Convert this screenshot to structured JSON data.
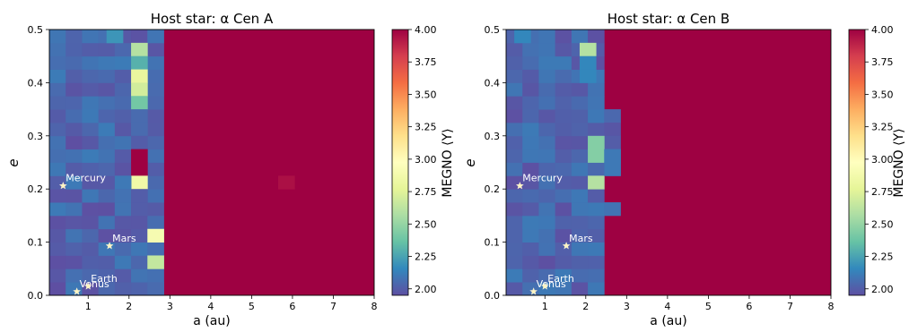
{
  "figure": {
    "colormap": [
      "#5e4fa2",
      "#3288bd",
      "#66c2a5",
      "#abdda4",
      "#e6f598",
      "#ffffbf",
      "#fee08b",
      "#fdae61",
      "#f46d43",
      "#d53e4f",
      "#9e0142"
    ]
  },
  "chart_data": [
    {
      "type": "heatmap",
      "title": "Host star: α Cen A",
      "xlabel": "a (au)",
      "ylabel": "e",
      "colorbar_label": "MEGNO ⟨Y⟩",
      "xlim": [
        0.05,
        8
      ],
      "ylim": [
        0,
        0.5
      ],
      "clim": [
        1.95,
        4.0
      ],
      "xticks": [
        "1",
        "2",
        "3",
        "4",
        "5",
        "6",
        "7",
        "8"
      ],
      "yticks": [
        "0.0",
        "0.1",
        "0.2",
        "0.3",
        "0.4",
        "0.5"
      ],
      "cticks": [
        "2.00",
        "2.25",
        "2.50",
        "2.75",
        "3.00",
        "3.25",
        "3.50",
        "3.75",
        "4.00"
      ],
      "grid_cell": {
        "a_width": 0.4,
        "e_height": 0.025
      },
      "stable_limit_a": 2.85,
      "background_value": 4.0,
      "highlight_cells": [
        {
          "a": 1.65,
          "e": 0.4875,
          "value": 2.2
        },
        {
          "a": 2.25,
          "e": 0.4625,
          "value": 2.6
        },
        {
          "a": 2.25,
          "e": 0.4375,
          "value": 2.3
        },
        {
          "a": 2.25,
          "e": 0.4125,
          "value": 2.8
        },
        {
          "a": 2.25,
          "e": 0.3875,
          "value": 2.7
        },
        {
          "a": 2.25,
          "e": 0.3625,
          "value": 2.4
        },
        {
          "a": 2.25,
          "e": 0.3375,
          "value": 2.05
        },
        {
          "a": 2.25,
          "e": 0.3125,
          "value": 2.05
        },
        {
          "a": 2.25,
          "e": 0.2875,
          "value": 2.0
        },
        {
          "a": 2.25,
          "e": 0.2625,
          "value": 4.0
        },
        {
          "a": 2.25,
          "e": 0.2375,
          "value": 4.0
        },
        {
          "a": 2.25,
          "e": 0.2125,
          "value": 2.85
        },
        {
          "a": 2.25,
          "e": 0.1875,
          "value": 2.0
        },
        {
          "a": 2.25,
          "e": 0.1625,
          "value": 2.0
        },
        {
          "a": 1.85,
          "e": 0.2125,
          "value": 2.1
        },
        {
          "a": 2.65,
          "e": 0.1125,
          "value": 2.9
        },
        {
          "a": 2.65,
          "e": 0.0625,
          "value": 2.65
        },
        {
          "a": 2.65,
          "e": 0.0125,
          "value": 2.05
        },
        {
          "a": 5.85,
          "e": 0.2125,
          "value": 3.95
        }
      ],
      "planets": [
        {
          "name": "Mercury",
          "a": 0.387,
          "e": 0.206
        },
        {
          "name": "Venus",
          "a": 0.723,
          "e": 0.007
        },
        {
          "name": "Earth",
          "a": 1.0,
          "e": 0.017
        },
        {
          "name": "Mars",
          "a": 1.524,
          "e": 0.093
        }
      ]
    },
    {
      "type": "heatmap",
      "title": "Host star: α Cen B",
      "xlabel": "a (au)",
      "ylabel": "e",
      "colorbar_label": "MEGNO ⟨Y⟩",
      "xlim": [
        0.05,
        8
      ],
      "ylim": [
        0,
        0.5
      ],
      "clim": [
        1.95,
        4.0
      ],
      "xticks": [
        "1",
        "2",
        "3",
        "4",
        "5",
        "6",
        "7",
        "8"
      ],
      "yticks": [
        "0.0",
        "0.1",
        "0.2",
        "0.3",
        "0.4",
        "0.5"
      ],
      "cticks": [
        "2.00",
        "2.25",
        "2.50",
        "2.75",
        "3.00",
        "3.25",
        "3.50",
        "3.75",
        "4.00"
      ],
      "grid_cell": {
        "a_width": 0.4,
        "e_height": 0.025
      },
      "stable_limit_a": 2.45,
      "background_value": 4.0,
      "stable_extension_cells": [
        {
          "a": 2.65,
          "e": 0.3375
        },
        {
          "a": 2.65,
          "e": 0.3125
        },
        {
          "a": 2.65,
          "e": 0.2875
        },
        {
          "a": 2.65,
          "e": 0.2625
        },
        {
          "a": 2.65,
          "e": 0.2375
        },
        {
          "a": 2.65,
          "e": 0.1625
        }
      ],
      "highlight_cells": [
        {
          "a": 0.45,
          "e": 0.4875,
          "value": 2.15
        },
        {
          "a": 2.05,
          "e": 0.4625,
          "value": 2.6
        },
        {
          "a": 2.05,
          "e": 0.4375,
          "value": 2.15
        },
        {
          "a": 2.05,
          "e": 0.4125,
          "value": 2.15
        },
        {
          "a": 2.25,
          "e": 0.2875,
          "value": 2.45
        },
        {
          "a": 2.25,
          "e": 0.2625,
          "value": 2.45
        },
        {
          "a": 2.25,
          "e": 0.2125,
          "value": 2.6
        },
        {
          "a": 2.65,
          "e": 0.2625,
          "value": 2.1
        },
        {
          "a": 2.65,
          "e": 0.2375,
          "value": 2.1
        }
      ],
      "planets": [
        {
          "name": "Mercury",
          "a": 0.387,
          "e": 0.206
        },
        {
          "name": "Venus",
          "a": 0.723,
          "e": 0.007
        },
        {
          "name": "Earth",
          "a": 1.0,
          "e": 0.017
        },
        {
          "name": "Mars",
          "a": 1.524,
          "e": 0.093
        }
      ]
    }
  ]
}
